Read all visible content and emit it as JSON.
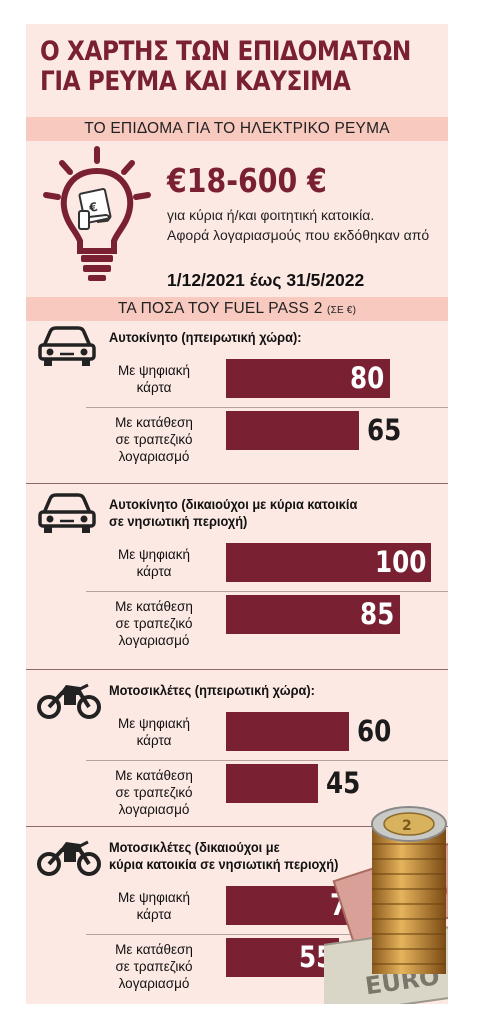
{
  "title_lines": [
    "Ο ΧΑΡΤΗΣ ΤΩΝ ΕΠΙΔΟΜΑΤΩΝ",
    "ΓΙΑ ΡΕΥΜΑ ΚΑΙ ΚΑΥΣΙΜΑ"
  ],
  "electricity": {
    "header": "ΤΟ ΕΠΙΔΟΜΑ ΓΙΑ ΤΟ ΗΛΕΚΤΡΙΚΟ ΡΕΥΜΑ",
    "amount": "€18-600 €",
    "line1": "για κύρια ή/και φοιτητική κατοικία.",
    "line2": "Αφορά λογαριασμούς που εκδόθηκαν από",
    "period": "1/12/2021 έως 31/5/2022"
  },
  "fuel_header": {
    "main": "ΤΑ ΠΟΣΑ ΤΟΥ FUEL PASS 2 ",
    "unit": "(ΣΕ €)"
  },
  "colors": {
    "accent": "#7a2033",
    "panel": "#fde9e3",
    "band": "#f7c9bf"
  },
  "icons": [
    "lightbulb-icon",
    "car-icon",
    "motorcycle-icon",
    "coins-banknotes-image"
  ],
  "chart_data": {
    "type": "bar",
    "orientation": "horizontal",
    "title": "ΤΑ ΠΟΣΑ ΤΟΥ FUEL PASS 2 (ΣΕ €)",
    "xlim": [
      0,
      100
    ],
    "groups": [
      {
        "title": [
          "Αυτοκίνητο (ηπειρωτική χώρα):"
        ],
        "icon": "car-icon",
        "items": [
          {
            "label": [
              "Με ψηφιακή",
              "κάρτα"
            ],
            "value": 80
          },
          {
            "label": [
              "Με κατάθεση",
              "σε τραπεζικό λογαριασμό"
            ],
            "value": 65
          }
        ]
      },
      {
        "title": [
          "Αυτοκίνητο (δικαιούχοι με κύρια κατοικία",
          "σε νησιωτική περιοχή)"
        ],
        "icon": "car-icon",
        "items": [
          {
            "label": [
              "Με ψηφιακή",
              "κάρτα"
            ],
            "value": 100
          },
          {
            "label": [
              "Με κατάθεση",
              "σε τραπεζικό λογαριασμό"
            ],
            "value": 85
          }
        ]
      },
      {
        "title": [
          "Μοτοσικλέτες (ηπειρωτική χώρα):"
        ],
        "icon": "motorcycle-icon",
        "items": [
          {
            "label": [
              "Με ψηφιακή",
              "κάρτα"
            ],
            "value": 60
          },
          {
            "label": [
              "Με κατάθεση",
              "σε τραπεζικό λογαριασμό"
            ],
            "value": 45
          }
        ]
      },
      {
        "title": [
          "Μοτοσικλέτες (δικαιούχοι με",
          "κύρια κατοικία σε νησιωτική περιοχή)"
        ],
        "icon": "motorcycle-icon",
        "items": [
          {
            "label": [
              "Με ψηφιακή",
              "κάρτα"
            ],
            "value": 70
          },
          {
            "label": [
              "Με κατάθεση",
              "σε τραπεζικό λογαριασμό"
            ],
            "value": 55
          }
        ]
      }
    ]
  }
}
